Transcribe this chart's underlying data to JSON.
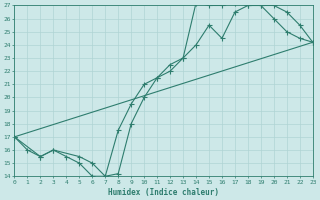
{
  "xlabel": "Humidex (Indice chaleur)",
  "xlim": [
    0,
    23
  ],
  "ylim": [
    14,
    27
  ],
  "xticks": [
    0,
    1,
    2,
    3,
    4,
    5,
    6,
    7,
    8,
    9,
    10,
    11,
    12,
    13,
    14,
    15,
    16,
    17,
    18,
    19,
    20,
    21,
    22,
    23
  ],
  "yticks": [
    14,
    15,
    16,
    17,
    18,
    19,
    20,
    21,
    22,
    23,
    24,
    25,
    26,
    27
  ],
  "line_color": "#2e7d6e",
  "bg_color": "#cde8e8",
  "grid_color": "#b0d4d4",
  "line1_x": [
    0,
    1,
    2,
    3,
    4,
    5,
    6,
    7,
    8,
    9,
    10,
    11,
    12,
    13,
    14,
    15,
    16,
    17,
    18,
    19,
    20,
    21,
    22,
    23
  ],
  "line1_y": [
    17,
    16,
    15.5,
    16,
    15.5,
    15,
    14,
    14,
    17.5,
    19.5,
    21,
    21.5,
    22.5,
    23,
    27.2,
    27,
    27,
    27.2,
    27,
    27,
    26,
    25,
    24.5,
    24.2
  ],
  "line2_x": [
    0,
    2,
    3,
    5,
    6,
    7,
    8,
    9,
    10,
    11,
    12,
    13,
    14,
    15,
    16,
    17,
    18,
    19,
    20,
    21,
    22,
    23
  ],
  "line2_y": [
    17,
    15.5,
    16,
    15.5,
    15,
    14,
    14.2,
    18,
    20,
    21.5,
    22,
    23,
    24,
    25.5,
    24.5,
    26.5,
    27,
    27,
    27,
    26.5,
    25.5,
    24.2
  ],
  "line3_x": [
    0,
    23
  ],
  "line3_y": [
    17,
    24.2
  ]
}
